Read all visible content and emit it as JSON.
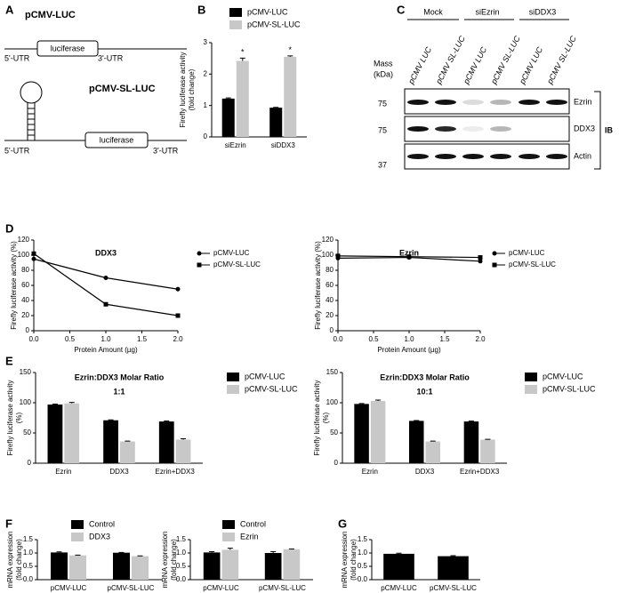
{
  "panel_labels": [
    "A",
    "B",
    "C",
    "D",
    "E",
    "F",
    "G"
  ],
  "diagram": {
    "top_title": "pCMV-LUC",
    "top_box": "luciferase",
    "top_left": "5'-UTR",
    "top_right": "3'-UTR",
    "bottom_title": "pCMV-SL-LUC",
    "bottom_box": "luciferase",
    "bottom_left": "5'-UTR",
    "bottom_right": "3'-UTR"
  },
  "blot": {
    "groups": [
      "Mock",
      "siEzrin",
      "siDDX3"
    ],
    "lanes": [
      "pCMV LUC",
      "pCMV SL-LUC",
      "pCMV LUC",
      "pCMV SL-LUC",
      "pCMV LUC",
      "pCMV SL-LUC"
    ],
    "mass_label": [
      "Mass",
      "(kDa)"
    ],
    "markers": [
      75,
      75,
      37
    ],
    "bands": [
      "Ezrin",
      "DDX3",
      "Actin"
    ],
    "ib": "IB"
  },
  "chart_data": [
    {
      "type": "bar",
      "categories": [
        "siEzrin",
        "siDDX3"
      ],
      "ylabel": [
        "Firefly luciferase activity",
        "(fold change)"
      ],
      "ylim": [
        0,
        3
      ],
      "yticks": [
        0,
        1,
        2,
        3
      ],
      "series": [
        {
          "name": "pCMV-LUC",
          "color": "#000000",
          "values": [
            1.22,
            0.93
          ],
          "errors": [
            0.02,
            0.01
          ]
        },
        {
          "name": "pCMV-SL-LUC",
          "color": "#c8c8c8",
          "values": [
            2.42,
            2.55
          ],
          "errors": [
            0.09,
            0.03
          ]
        }
      ],
      "annotations": [
        "*",
        "*"
      ]
    },
    {
      "type": "line",
      "title": "DDX3",
      "xlabel": "Protein Amount (µg)",
      "ylabel": [
        "Firefly luciferase activity (%)"
      ],
      "x": [
        0,
        1,
        2
      ],
      "xlim": [
        0,
        2
      ],
      "xticks": [
        {
          "value": 0,
          "label": "0.0"
        },
        {
          "value": 0.5,
          "label": "0.5"
        },
        {
          "value": 1,
          "label": "1.0"
        },
        {
          "value": 1.5,
          "label": "1.5"
        },
        {
          "value": 2,
          "label": "2.0"
        }
      ],
      "ylim": [
        0,
        120
      ],
      "yticks": [
        0,
        20,
        40,
        60,
        80,
        100,
        120
      ],
      "series": [
        {
          "name": "pCMV-LUC",
          "color": "#000000",
          "marker": "circle",
          "values": [
            95,
            70,
            55
          ]
        },
        {
          "name": "pCMV-SL-LUC",
          "color": "#000000",
          "marker": "square",
          "values": [
            102,
            35,
            20
          ]
        }
      ]
    },
    {
      "type": "line",
      "title": "Ezrin",
      "xlabel": "Protein Amount (µg)",
      "ylabel": [
        "Firefly luciferase activity (%)"
      ],
      "x": [
        0,
        1,
        2
      ],
      "xlim": [
        0,
        2
      ],
      "xticks": [
        {
          "value": 0,
          "label": "0.0"
        },
        {
          "value": 0.5,
          "label": "0.5"
        },
        {
          "value": 1,
          "label": "1.0"
        },
        {
          "value": 1.5,
          "label": "1.5"
        },
        {
          "value": 2,
          "label": "2.0"
        }
      ],
      "ylim": [
        0,
        120
      ],
      "yticks": [
        0,
        20,
        40,
        60,
        80,
        100,
        120
      ],
      "series": [
        {
          "name": "pCMV-LUC",
          "color": "#000000",
          "marker": "circle",
          "values": [
            96,
            97,
            92
          ]
        },
        {
          "name": "pCMV-SL-LUC",
          "color": "#000000",
          "marker": "square",
          "values": [
            99,
            98,
            97
          ]
        }
      ]
    },
    {
      "type": "bar",
      "title": "Ezrin:DDX3 Molar Ratio",
      "subtitle": "1:1",
      "categories": [
        "Ezrin",
        "DDX3",
        "Ezrin+DDX3"
      ],
      "ylabel": [
        "Firefly luciferase activity",
        "(%)"
      ],
      "ylim": [
        0,
        150
      ],
      "yticks": [
        0,
        50,
        100,
        150
      ],
      "series": [
        {
          "name": "pCMV-LUC",
          "color": "#000000",
          "values": [
            97,
            71,
            69
          ],
          "errors": [
            0.8,
            0.6,
            0.8
          ]
        },
        {
          "name": "pCMV-SL-LUC",
          "color": "#c8c8c8",
          "values": [
            99,
            36,
            39
          ],
          "errors": [
            1.5,
            0.6,
            1.5
          ]
        }
      ]
    },
    {
      "type": "bar",
      "title": "Ezrin:DDX3 Molar Ratio",
      "subtitle": "10:1",
      "categories": [
        "Ezrin",
        "DDX3",
        "Ezrin+DDX3"
      ],
      "ylabel": [
        "Firefly luciferase activity",
        "(%)"
      ],
      "ylim": [
        0,
        150
      ],
      "yticks": [
        0,
        50,
        100,
        150
      ],
      "series": [
        {
          "name": "pCMV-LUC",
          "color": "#000000",
          "values": [
            98,
            70,
            69
          ],
          "errors": [
            0.8,
            0.6,
            0.6
          ]
        },
        {
          "name": "pCMV-SL-LUC",
          "color": "#c8c8c8",
          "values": [
            103,
            36,
            39
          ],
          "errors": [
            1.5,
            0.6,
            0.6
          ]
        }
      ]
    },
    {
      "type": "bar",
      "categories": [
        "pCMV-LUC",
        "pCMV-SL-LUC"
      ],
      "ylabel": [
        "mRNA expression",
        "(fold change)"
      ],
      "ylim": [
        0,
        1.5
      ],
      "yticks": [
        {
          "value": 0,
          "label": "0.0"
        },
        {
          "value": 0.5,
          "label": "0.5"
        },
        {
          "value": 1,
          "label": "1.0"
        },
        {
          "value": 1.5,
          "label": "1.5"
        }
      ],
      "series": [
        {
          "name": "Control",
          "color": "#000000",
          "values": [
            1.02,
            1.01
          ],
          "errors": [
            0.02,
            0.01
          ]
        },
        {
          "name": "DDX3",
          "color": "#c8c8c8",
          "values": [
            0.91,
            0.88
          ],
          "errors": [
            0.01,
            0.01
          ]
        }
      ]
    },
    {
      "type": "bar",
      "categories": [
        "pCMV-LUC",
        "pCMV-SL-LUC"
      ],
      "ylabel": [
        "mRNA expression",
        "(fold change)"
      ],
      "ylim": [
        0,
        1.5
      ],
      "yticks": [
        {
          "value": 0,
          "label": "0.0"
        },
        {
          "value": 0.5,
          "label": "0.5"
        },
        {
          "value": 1,
          "label": "1.0"
        },
        {
          "value": 1.5,
          "label": "1.5"
        }
      ],
      "series": [
        {
          "name": "Control",
          "color": "#000000",
          "values": [
            1.02,
            1.0
          ],
          "errors": [
            0.03,
            0.05
          ]
        },
        {
          "name": "Ezrin",
          "color": "#c8c8c8",
          "values": [
            1.12,
            1.14
          ],
          "errors": [
            0.06,
            0.01
          ]
        }
      ]
    },
    {
      "type": "bar",
      "categories": [
        "pCMV-LUC",
        "pCMV-SL-LUC"
      ],
      "ylabel": [
        "mRNA expression",
        "(fold change)"
      ],
      "ylim": [
        0,
        1.5
      ],
      "yticks": [
        {
          "value": 0,
          "label": "0.0"
        },
        {
          "value": 0.5,
          "label": "0.5"
        },
        {
          "value": 1,
          "label": "1.0"
        },
        {
          "value": 1.5,
          "label": "1.5"
        }
      ],
      "color": "#000000",
      "values": [
        0.97,
        0.88
      ],
      "errors": [
        0.02,
        0.02
      ]
    }
  ]
}
